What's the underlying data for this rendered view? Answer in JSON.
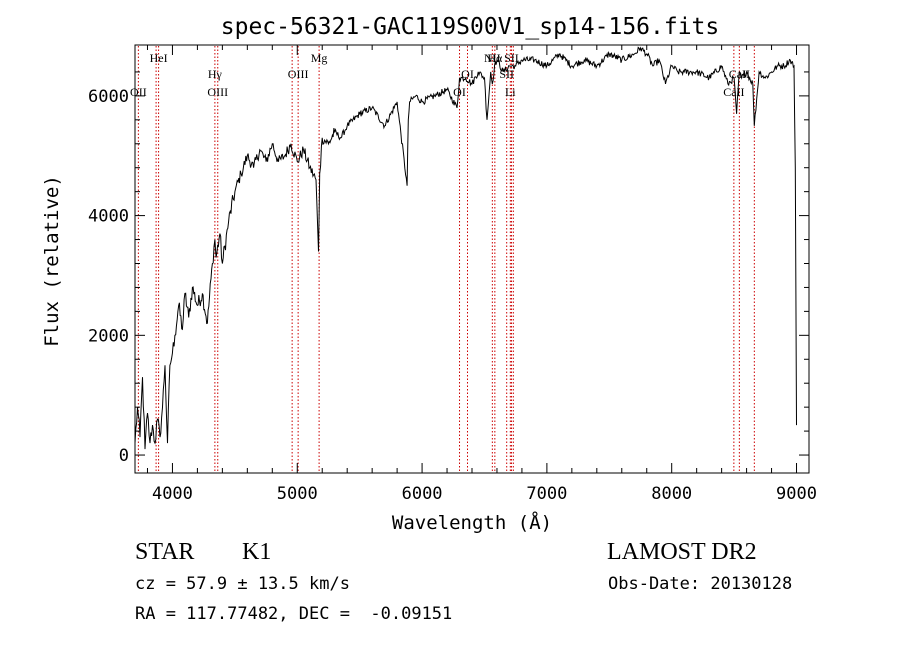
{
  "chart_data": {
    "type": "line",
    "title": "spec-56321-GAC119S00V1_sp14-156.fits",
    "xlabel": "Wavelength (Å)",
    "ylabel": "Flux (relative)",
    "xlim": [
      3700,
      9100
    ],
    "ylim": [
      -300,
      6850
    ],
    "xticks": [
      4000,
      5000,
      6000,
      7000,
      8000,
      9000
    ],
    "yticks": [
      0,
      2000,
      4000,
      6000
    ],
    "grid": false,
    "line_color": "#000000",
    "marker_color": "#cc0000",
    "series": [
      {
        "x": [
          3700,
          3720,
          3740,
          3760,
          3780,
          3800,
          3820,
          3840,
          3860,
          3880,
          3900,
          3920,
          3940,
          3960,
          3980,
          4000,
          4020,
          4050,
          4080,
          4100,
          4130,
          4160,
          4200,
          4240,
          4280,
          4320,
          4340,
          4350,
          4380,
          4400,
          4450,
          4500,
          4550,
          4600,
          4650,
          4700,
          4750,
          4800,
          4850,
          4900,
          4950,
          5000,
          5050,
          5100,
          5150,
          5170,
          5180,
          5200,
          5250,
          5300,
          5350,
          5400,
          5500,
          5600,
          5700,
          5800,
          5880,
          5890,
          5900,
          5950,
          6000,
          6100,
          6200,
          6280,
          6300,
          6350,
          6400,
          6450,
          6500,
          6520,
          6550,
          6563,
          6580,
          6600,
          6650,
          6700,
          6750,
          6800,
          6900,
          7000,
          7100,
          7200,
          7300,
          7400,
          7500,
          7600,
          7700,
          7750,
          7800,
          7850,
          7900,
          7950,
          8000,
          8050,
          8100,
          8200,
          8300,
          8400,
          8450,
          8500,
          8520,
          8542,
          8560,
          8600,
          8650,
          8662,
          8700,
          8750,
          8800,
          8850,
          8900,
          8950,
          8980,
          8990,
          9000
        ],
        "y": [
          200,
          800,
          300,
          1300,
          100,
          700,
          200,
          500,
          200,
          600,
          300,
          800,
          1500,
          200,
          1500,
          1700,
          2000,
          2500,
          2100,
          2700,
          2300,
          2800,
          2500,
          2700,
          2200,
          3200,
          3600,
          3300,
          3700,
          3200,
          3900,
          4400,
          4700,
          5000,
          4800,
          5100,
          4900,
          5200,
          4900,
          5000,
          5200,
          4900,
          5100,
          4800,
          4600,
          3400,
          4700,
          5300,
          5200,
          5400,
          5300,
          5500,
          5700,
          5800,
          5500,
          5900,
          4500,
          5600,
          5900,
          6000,
          5900,
          6000,
          6100,
          5800,
          6300,
          6300,
          6200,
          6400,
          6300,
          5600,
          6400,
          6200,
          6500,
          6600,
          6400,
          6500,
          6500,
          6600,
          6600,
          6500,
          6700,
          6500,
          6600,
          6500,
          6700,
          6600,
          6700,
          6800,
          6700,
          6500,
          6600,
          6200,
          6500,
          6400,
          6400,
          6400,
          6300,
          6500,
          6200,
          6300,
          5700,
          6400,
          6300,
          6400,
          6200,
          5500,
          6400,
          6300,
          6400,
          6500,
          6500,
          6600,
          6500,
          4800,
          500
        ]
      }
    ],
    "lines": [
      {
        "x": 3727,
        "label": "OII",
        "row": 3
      },
      {
        "x": 3869,
        "label": "",
        "row": 0
      },
      {
        "x": 3889,
        "label": "HeI",
        "row": 1
      },
      {
        "x": 4340,
        "label": "Hγ",
        "row": 2
      },
      {
        "x": 4363,
        "label": "OIII",
        "row": 3
      },
      {
        "x": 4959,
        "label": "",
        "row": 0
      },
      {
        "x": 5007,
        "label": "OIII",
        "row": 2
      },
      {
        "x": 5175,
        "label": "Mg",
        "row": 1
      },
      {
        "x": 6300,
        "label": "OI",
        "row": 3
      },
      {
        "x": 6364,
        "label": "OI",
        "row": 2
      },
      {
        "x": 6563,
        "label": "NII",
        "row": 1
      },
      {
        "x": 6583,
        "label": "Hα",
        "row": 1
      },
      {
        "x": 6678,
        "label": "SII",
        "row": 2
      },
      {
        "x": 6707,
        "label": "Li",
        "row": 3
      },
      {
        "x": 6716,
        "label": "SII",
        "row": 1
      },
      {
        "x": 6731,
        "label": "",
        "row": 0
      },
      {
        "x": 8498,
        "label": "CaII",
        "row": 3
      },
      {
        "x": 8542,
        "label": "CaII",
        "row": 2
      },
      {
        "x": 8662,
        "label": "",
        "row": 0
      }
    ]
  },
  "footer": {
    "object_class": "STAR",
    "subclass": "K1",
    "survey": "LAMOST DR2",
    "cz": "cz = 57.9 ± 13.5 km/s",
    "obs_date": "Obs-Date: 20130128",
    "radec": "RA = 117.77482, DEC =  -0.09151"
  }
}
